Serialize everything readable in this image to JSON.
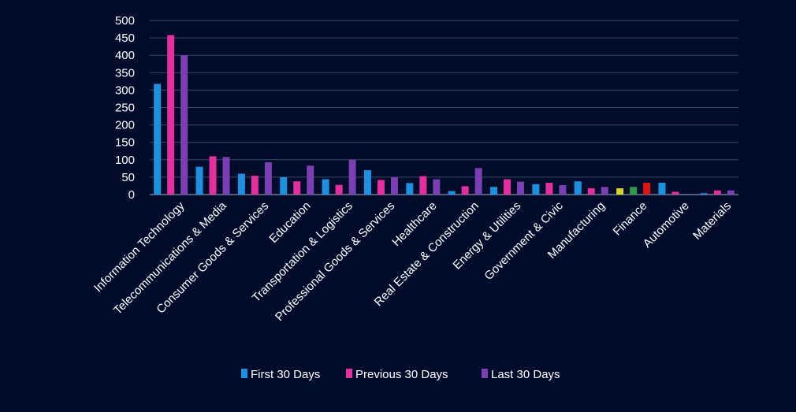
{
  "chart_data": {
    "type": "bar",
    "title": "",
    "xlabel": "",
    "ylabel": "",
    "ylim": [
      0,
      500
    ],
    "yticks": [
      0,
      50,
      100,
      150,
      200,
      250,
      300,
      350,
      400,
      450,
      500
    ],
    "grid": "horizontal",
    "legend_position": "bottom",
    "categories": [
      "Information Technology",
      "Telecommunications & Media",
      "Consumer Goods &  Services",
      "Education",
      "Transportation & Logistics",
      "Professional Goods & Services",
      "Healthcare",
      "Real Estate & Construction",
      "Energy & Utilities",
      "Government & Civic",
      "Manufacturing",
      "Finance",
      "Automotive",
      "Materials"
    ],
    "series": [
      {
        "name": "First 30 Days",
        "color": "#1e90e0",
        "values": [
          318,
          80,
          60,
          50,
          44,
          70,
          33,
          10,
          22,
          30,
          38,
          18,
          34,
          4
        ]
      },
      {
        "name": "Previous 30 Days",
        "color": "#e62e9e",
        "values": [
          458,
          110,
          54,
          38,
          28,
          42,
          53,
          24,
          44,
          34,
          18,
          22,
          8,
          12
        ]
      },
      {
        "name": "Last 30 Days",
        "color": "#7a3fb2",
        "values": [
          400,
          108,
          93,
          83,
          100,
          50,
          44,
          76,
          37,
          27,
          22,
          34,
          0,
          12
        ]
      }
    ],
    "point_colors": {
      "11": [
        "#d8d42a",
        "#2e9a4a",
        "#e01414"
      ]
    }
  }
}
